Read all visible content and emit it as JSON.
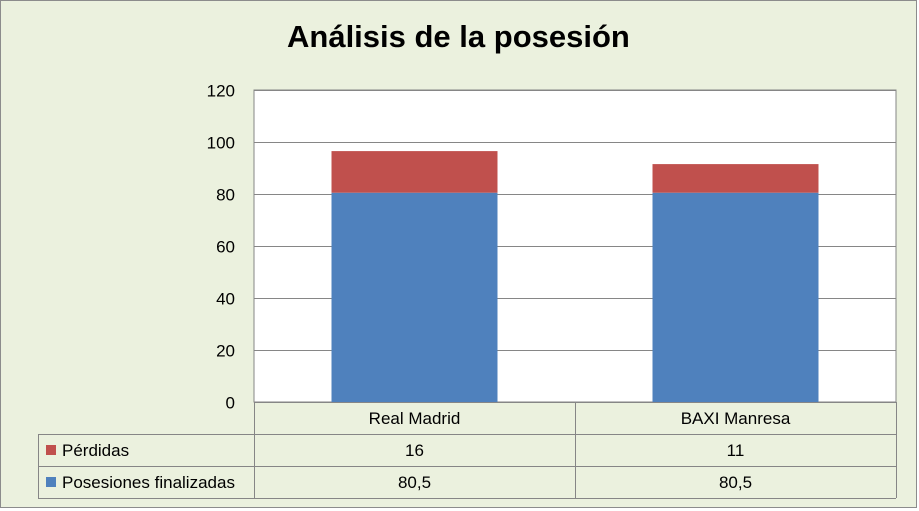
{
  "chart_data": {
    "type": "bar",
    "stacked": true,
    "title": "Análisis de la posesión",
    "categories": [
      "Real Madrid",
      "BAXI Manresa"
    ],
    "series": [
      {
        "name": "Posesiones finalizadas",
        "values": [
          80.5,
          80.5
        ],
        "labels": [
          "80,5",
          "80,5"
        ],
        "color": "#4f81bd"
      },
      {
        "name": "Pérdidas",
        "values": [
          16,
          11
        ],
        "labels": [
          "16",
          "11"
        ],
        "color": "#c0504d"
      }
    ],
    "ylim": [
      0,
      120
    ],
    "yticks": [
      "0",
      "20",
      "40",
      "60",
      "80",
      "100",
      "120"
    ],
    "grid": true,
    "data_table": true
  },
  "colors": {
    "background": "#ebf1de",
    "plot_background": "#ffffff",
    "grid": "#868686"
  }
}
